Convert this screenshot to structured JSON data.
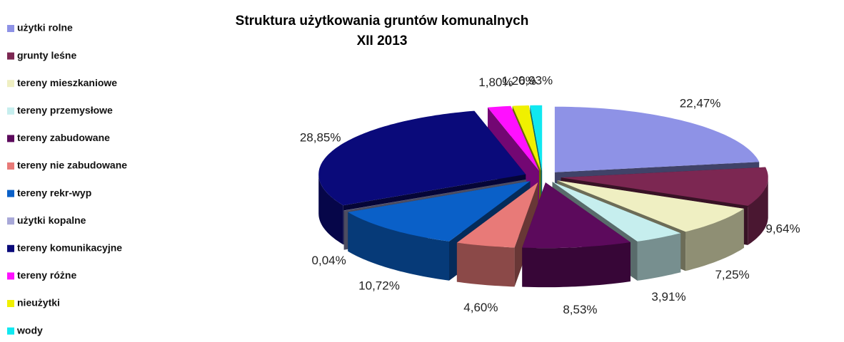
{
  "chart_data": {
    "type": "pie",
    "title": "Struktura użytkowania gruntów komunalnych",
    "subtitle": "XII 2013",
    "categories": [
      "użytki rolne",
      "grunty leśne",
      "tereny mieszkaniowe",
      "tereny przemysłowe",
      "tereny zabudowane",
      "tereny nie zabudowane",
      "tereny rekr-wyp",
      "użytki kopalne",
      "tereny komunikacyjne",
      "tereny różne",
      "nieużytki",
      "wody"
    ],
    "values": [
      22.47,
      9.64,
      7.25,
      3.91,
      8.53,
      4.6,
      10.72,
      0.04,
      28.85,
      1.8,
      1.26,
      0.93
    ],
    "value_labels": [
      "22,47%",
      "9,64%",
      "7,25%",
      "3,91%",
      "8,53%",
      "4,60%",
      "10,72%",
      "0,04%",
      "28,85%",
      "1,80%",
      "1,26%",
      "0,93%"
    ],
    "colors": [
      "#8e92e6",
      "#7c2752",
      "#efefc2",
      "#c6eeee",
      "#5c0a5c",
      "#e87a78",
      "#0a60c8",
      "#a8a8d8",
      "#0a0a7a",
      "#ff10ff",
      "#f0f000",
      "#10e8f0"
    ],
    "legend": "left"
  }
}
